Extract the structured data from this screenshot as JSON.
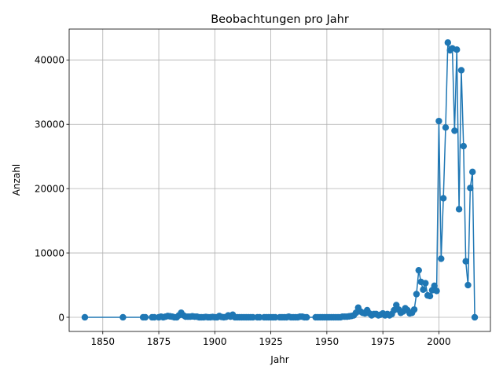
{
  "chart_data": {
    "type": "line",
    "title": "Beobachtungen pro Jahr",
    "xlabel": "Jahr",
    "ylabel": "Anzahl",
    "xlim": [
      1835,
      2023
    ],
    "ylim": [
      -2200,
      44800
    ],
    "xticks": [
      1850,
      1875,
      1900,
      1925,
      1950,
      1975,
      2000
    ],
    "yticks": [
      0,
      10000,
      20000,
      30000,
      40000
    ],
    "grid": true,
    "color": "#1f77b4",
    "series": [
      {
        "x": [
          1842,
          1859,
          1868,
          1869,
          1872,
          1873,
          1875,
          1876,
          1877,
          1878,
          1879,
          1880,
          1881,
          1882,
          1883,
          1884,
          1885,
          1886,
          1887,
          1888,
          1889,
          1890,
          1891,
          1892,
          1893,
          1894,
          1895,
          1896,
          1897,
          1898,
          1899,
          1900,
          1901,
          1902,
          1903,
          1904,
          1905,
          1906,
          1907,
          1908,
          1909,
          1910,
          1911,
          1912,
          1913,
          1914,
          1915,
          1916,
          1917,
          1919,
          1920,
          1922,
          1923,
          1924,
          1925,
          1926,
          1927,
          1929,
          1930,
          1931,
          1932,
          1933,
          1934,
          1935,
          1936,
          1937,
          1938,
          1939,
          1940,
          1941,
          1945,
          1946,
          1947,
          1948,
          1949,
          1950,
          1951,
          1952,
          1953,
          1954,
          1955,
          1956,
          1957,
          1958,
          1959,
          1960,
          1961,
          1962,
          1963,
          1964,
          1965,
          1966,
          1967,
          1968,
          1969,
          1970,
          1971,
          1972,
          1973,
          1974,
          1975,
          1976,
          1977,
          1978,
          1979,
          1980,
          1981,
          1982,
          1983,
          1984,
          1985,
          1986,
          1987,
          1988,
          1989,
          1990,
          1991,
          1992,
          1993,
          1994,
          1995,
          1996,
          1997,
          1998,
          1999,
          2000,
          2001,
          2002,
          2003,
          2004,
          2005,
          2006,
          2007,
          2008,
          2009,
          2010,
          2011,
          2012,
          2013,
          2014,
          2015,
          2016
        ],
        "y": [
          0,
          0,
          0,
          0,
          0,
          0,
          0,
          100,
          0,
          100,
          200,
          150,
          100,
          0,
          0,
          300,
          700,
          300,
          100,
          100,
          100,
          150,
          100,
          100,
          0,
          0,
          0,
          50,
          0,
          0,
          50,
          0,
          0,
          200,
          50,
          0,
          50,
          300,
          100,
          400,
          0,
          0,
          0,
          0,
          0,
          0,
          0,
          0,
          0,
          0,
          0,
          0,
          0,
          0,
          0,
          0,
          0,
          0,
          0,
          0,
          0,
          100,
          0,
          0,
          0,
          0,
          100,
          100,
          0,
          0,
          0,
          0,
          0,
          0,
          0,
          0,
          0,
          0,
          0,
          0,
          0,
          0,
          100,
          100,
          100,
          150,
          200,
          300,
          700,
          1500,
          900,
          700,
          600,
          1100,
          600,
          300,
          500,
          500,
          300,
          400,
          600,
          300,
          500,
          300,
          500,
          1100,
          1900,
          1200,
          700,
          900,
          1400,
          1100,
          600,
          700,
          1200,
          3600,
          7300,
          5500,
          4300,
          5300,
          3400,
          3300,
          4200,
          4900,
          4100,
          30500,
          9100,
          18500,
          29500,
          42700,
          41500,
          41800,
          29000,
          41600,
          16800,
          38400,
          26600,
          8700,
          5000,
          20100,
          22600,
          0
        ]
      }
    ]
  }
}
